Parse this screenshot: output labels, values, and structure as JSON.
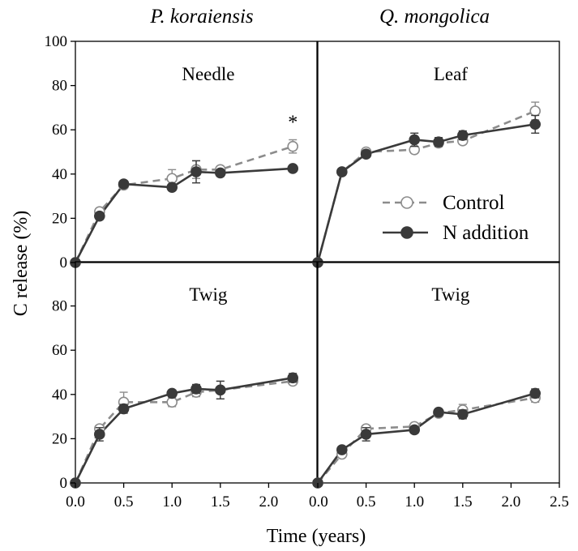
{
  "species": [
    "P. koraiensis",
    "Q. mongolica"
  ],
  "colors": {
    "control": "#8c8c8c",
    "n_addition": "#3a3a3a"
  },
  "chart_data": {
    "type": "line",
    "xlabel": "Time (years)",
    "ylabel": "C release (%)",
    "xlim": [
      0,
      2.5
    ],
    "ylim_top": [
      0,
      100
    ],
    "ylim_bottom": [
      0,
      100
    ],
    "x_ticks_left": [
      "0.0",
      "0.5",
      "1.0",
      "1.5",
      "2.0"
    ],
    "x_ticks_right": [
      "0.0",
      "0.5",
      "1.0",
      "1.5",
      "2.0",
      "2.5"
    ],
    "y_ticks_top": [
      "0",
      "20",
      "40",
      "60",
      "80",
      "100"
    ],
    "y_ticks_bottom": [
      "0",
      "20",
      "40",
      "60",
      "80"
    ],
    "legend": [
      "Control",
      "N addition"
    ],
    "panels": [
      {
        "label": "Needle",
        "species": "P. koraiensis",
        "x": [
          0,
          0.25,
          0.5,
          1.0,
          1.25,
          1.5,
          2.25
        ],
        "series": [
          {
            "name": "Control",
            "values": [
              0,
              23,
              35,
              38,
              42,
              42,
              52.5
            ],
            "errors": [
              0,
              1.5,
              1.5,
              4,
              4,
              1.5,
              3
            ]
          },
          {
            "name": "N addition",
            "values": [
              0,
              21,
              35.5,
              34,
              41,
              40.5,
              42.5
            ],
            "errors": [
              0,
              1.5,
              1.5,
              1.5,
              5,
              1.5,
              1
            ]
          }
        ],
        "annotation": "*"
      },
      {
        "label": "Leaf",
        "species": "Q. mongolica",
        "x": [
          0,
          0.25,
          0.5,
          1.0,
          1.25,
          1.5,
          2.25
        ],
        "series": [
          {
            "name": "Control",
            "values": [
              0,
              41,
              50,
              51,
              54,
              55,
              68.5
            ],
            "errors": [
              0,
              1.5,
              1.5,
              1.5,
              1.5,
              1.5,
              4
            ]
          },
          {
            "name": "N addition",
            "values": [
              0,
              41,
              49,
              55.5,
              54.5,
              57.5,
              62.5
            ],
            "errors": [
              0,
              1.5,
              1.5,
              3,
              2,
              2,
              4
            ]
          }
        ]
      },
      {
        "label": "Twig",
        "species": "P. koraiensis",
        "x": [
          0,
          0.25,
          0.5,
          1.0,
          1.25,
          1.5,
          2.25
        ],
        "series": [
          {
            "name": "Control",
            "values": [
              0,
              24.5,
              36.5,
              36.5,
              41,
              42,
              46
            ],
            "errors": [
              0,
              1.5,
              4.5,
              2,
              2,
              4,
              1.5
            ]
          },
          {
            "name": "N addition",
            "values": [
              0,
              22,
              33.5,
              40.5,
              42.5,
              42,
              47.5
            ],
            "errors": [
              0,
              3,
              2,
              1.5,
              2,
              4,
              2
            ]
          }
        ]
      },
      {
        "label": "Twig",
        "species": "Q. mongolica",
        "x": [
          0,
          0.25,
          0.5,
          1.0,
          1.25,
          1.5,
          2.25
        ],
        "series": [
          {
            "name": "Control",
            "values": [
              0,
              13,
              24.5,
              25.5,
              31.5,
              33,
              38.5
            ],
            "errors": [
              0,
              1.5,
              1.5,
              1.5,
              1.5,
              2.5,
              2
            ]
          },
          {
            "name": "N addition",
            "values": [
              0,
              15,
              22,
              24,
              32,
              31,
              40.5
            ],
            "errors": [
              0,
              1.5,
              3,
              1.5,
              1.5,
              2,
              2
            ]
          }
        ]
      }
    ]
  }
}
